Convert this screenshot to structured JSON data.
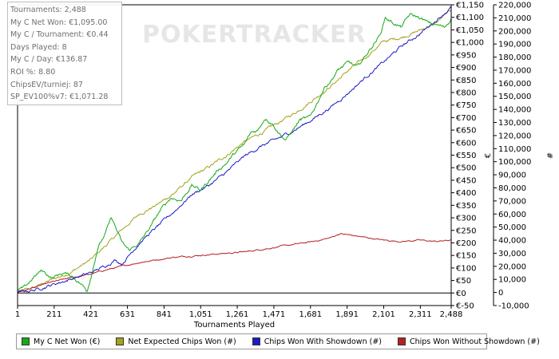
{
  "stats": [
    {
      "label": "Tournaments",
      "value": "2,488"
    },
    {
      "label": "My C Net Won",
      "value": "€1,095.00"
    },
    {
      "label": "My C / Tournament",
      "value": "€0.44"
    },
    {
      "label": "Days Played",
      "value": "8"
    },
    {
      "label": "My C / Day",
      "value": "€136.87"
    },
    {
      "label": "ROI %",
      "value": "8.80"
    },
    {
      "label": "ChipsEV/turniej",
      "value": "87"
    },
    {
      "label": "SP_EV100%v7",
      "value": "€1,071.28"
    }
  ],
  "watermark": "POKERTRACKER",
  "chart_data": {
    "type": "line",
    "xlabel": "Tournaments Played",
    "ylabel_left": "€",
    "ylabel_right": "#",
    "xlim": [
      1,
      2488
    ],
    "x_ticks": [
      1,
      211,
      421,
      631,
      841,
      1051,
      1261,
      1471,
      1681,
      1891,
      2101,
      2311,
      2488
    ],
    "x_tick_labels": [
      "1",
      "211",
      "421",
      "631",
      "841",
      "1,051",
      "1,261",
      "1,471",
      "1,681",
      "1,891",
      "2,101",
      "2,311",
      "2,488"
    ],
    "ylim_left": [
      -50,
      1150
    ],
    "y_ticks_left": [
      -50,
      0,
      50,
      100,
      150,
      200,
      250,
      300,
      350,
      400,
      450,
      500,
      550,
      600,
      650,
      700,
      750,
      800,
      850,
      900,
      950,
      1000,
      1050,
      1100,
      1150
    ],
    "y_tick_labels_left": [
      "€-50",
      "€0",
      "€50",
      "€100",
      "€150",
      "€200",
      "€250",
      "€300",
      "€350",
      "€400",
      "€450",
      "€500",
      "€550",
      "€600",
      "€650",
      "€700",
      "€750",
      "€800",
      "€850",
      "€900",
      "€950",
      "€1,000",
      "€1,050",
      "€1,100",
      "€1,150"
    ],
    "ylim_right": [
      -10000,
      220000
    ],
    "y_ticks_right": [
      -10000,
      0,
      10000,
      20000,
      30000,
      40000,
      50000,
      60000,
      70000,
      80000,
      90000,
      100000,
      110000,
      120000,
      130000,
      140000,
      150000,
      160000,
      170000,
      180000,
      190000,
      200000,
      210000,
      220000
    ],
    "y_tick_labels_right": [
      "-10,000",
      "0",
      "10,000",
      "20,000",
      "30,000",
      "40,000",
      "50,000",
      "60,000",
      "70,000",
      "80,000",
      "90,000",
      "100,000",
      "110,000",
      "120,000",
      "130,000",
      "140,000",
      "150,000",
      "160,000",
      "170,000",
      "180,000",
      "190,000",
      "200,000",
      "210,000",
      "220,000"
    ],
    "grid": false,
    "legend_position": "bottom",
    "series": [
      {
        "name": "My C Net Won (€)",
        "axis": "left",
        "color": "#17a817",
        "noise": 9,
        "x": [
          1,
          40,
          90,
          140,
          200,
          260,
          310,
          360,
          400,
          430,
          460,
          500,
          540,
          570,
          600,
          640,
          700,
          760,
          820,
          880,
          940,
          1000,
          1050,
          1100,
          1150,
          1200,
          1250,
          1300,
          1340,
          1380,
          1420,
          1460,
          1500,
          1540,
          1580,
          1620,
          1680,
          1720,
          1760,
          1800,
          1840,
          1900,
          1950,
          2000,
          2040,
          2080,
          2110,
          2150,
          2200,
          2250,
          2300,
          2350,
          2400,
          2450,
          2488
        ],
        "y": [
          10,
          20,
          60,
          90,
          60,
          80,
          70,
          40,
          10,
          90,
          180,
          230,
          300,
          250,
          200,
          170,
          200,
          260,
          330,
          380,
          370,
          430,
          410,
          450,
          490,
          520,
          560,
          590,
          640,
          650,
          700,
          680,
          640,
          610,
          650,
          690,
          700,
          760,
          820,
          850,
          890,
          920,
          900,
          950,
          990,
          1030,
          1100,
          1080,
          1060,
          1110,
          1100,
          1080,
          1070,
          1060,
          1095
        ]
      },
      {
        "name": "Net Expected Chips Won (#)",
        "axis": "right",
        "color": "#a3a31c",
        "noise": 1500,
        "x": [
          1,
          100,
          200,
          300,
          421,
          500,
          600,
          700,
          800,
          900,
          1000,
          1100,
          1200,
          1300,
          1400,
          1500,
          1600,
          1700,
          1800,
          1900,
          2000,
          2100,
          2200,
          2300,
          2400,
          2488
        ],
        "y": [
          0,
          4000,
          10000,
          15000,
          25000,
          35000,
          48000,
          60000,
          67000,
          76000,
          88000,
          96000,
          105000,
          115000,
          122000,
          130000,
          138000,
          148000,
          158000,
          170000,
          180000,
          192000,
          195000,
          200000,
          206000,
          216000
        ]
      },
      {
        "name": "Chips Won With Showdown (#)",
        "axis": "right",
        "color": "#1c1cc8",
        "noise": 1500,
        "x": [
          1,
          100,
          200,
          300,
          421,
          500,
          560,
          600,
          650,
          700,
          800,
          900,
          1000,
          1100,
          1200,
          1300,
          1400,
          1500,
          1600,
          1700,
          1800,
          1900,
          2000,
          2100,
          2200,
          2300,
          2400,
          2488
        ],
        "y": [
          0,
          2000,
          6000,
          10000,
          15000,
          20000,
          25000,
          22000,
          30000,
          38000,
          50000,
          62000,
          75000,
          82000,
          92000,
          104000,
          112000,
          118000,
          125000,
          133000,
          142000,
          153000,
          165000,
          176000,
          188000,
          197000,
          208000,
          218000
        ]
      },
      {
        "name": "Chips Won Without Showdown (#)",
        "axis": "right",
        "color": "#b52020",
        "noise": 700,
        "x": [
          1,
          100,
          200,
          300,
          421,
          500,
          600,
          700,
          800,
          900,
          1000,
          1100,
          1200,
          1300,
          1400,
          1500,
          1600,
          1700,
          1800,
          1850,
          1900,
          2000,
          2100,
          2200,
          2300,
          2400,
          2488
        ],
        "y": [
          0,
          4000,
          8000,
          11000,
          14000,
          17000,
          20000,
          23000,
          25000,
          27000,
          28000,
          29000,
          30000,
          31000,
          33000,
          35000,
          37000,
          39000,
          42000,
          45000,
          44000,
          42000,
          40000,
          39000,
          40000,
          39000,
          40000
        ]
      }
    ]
  }
}
